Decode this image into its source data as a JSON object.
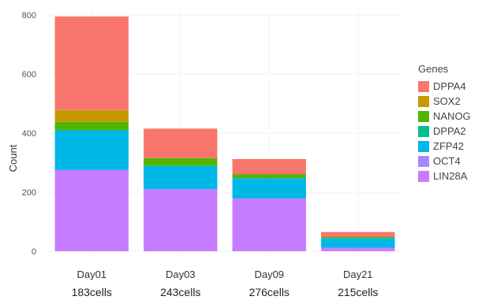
{
  "chart_data": {
    "type": "bar",
    "stacked": true,
    "ylabel": "Count",
    "ylim": [
      0,
      800
    ],
    "yticks": [
      0,
      200,
      400,
      600,
      800
    ],
    "grid": true,
    "legend_position": "right",
    "legend_title": "Genes",
    "categories": [
      "Day01",
      "Day03",
      "Day09",
      "Day21"
    ],
    "category_sublabels": [
      "183cells",
      "243cells",
      "276cells",
      "215cells"
    ],
    "series": [
      {
        "name": "LIN28A",
        "color": "#C77CFF",
        "values": [
          275,
          210,
          178,
          12
        ]
      },
      {
        "name": "OCT4",
        "color": "#A58AFF",
        "values": [
          0,
          0,
          0,
          0
        ]
      },
      {
        "name": "ZFP42",
        "color": "#00B8E7",
        "values": [
          133,
          78,
          68,
          30
        ]
      },
      {
        "name": "DPPA2",
        "color": "#00C08B",
        "values": [
          3,
          2,
          2,
          3
        ]
      },
      {
        "name": "NANOG",
        "color": "#53B400",
        "values": [
          27,
          25,
          12,
          3
        ]
      },
      {
        "name": "SOX2",
        "color": "#C49A00",
        "values": [
          40,
          0,
          0,
          0
        ]
      },
      {
        "name": "DPPA4",
        "color": "#F8766D",
        "values": [
          317,
          100,
          52,
          17
        ]
      }
    ]
  }
}
